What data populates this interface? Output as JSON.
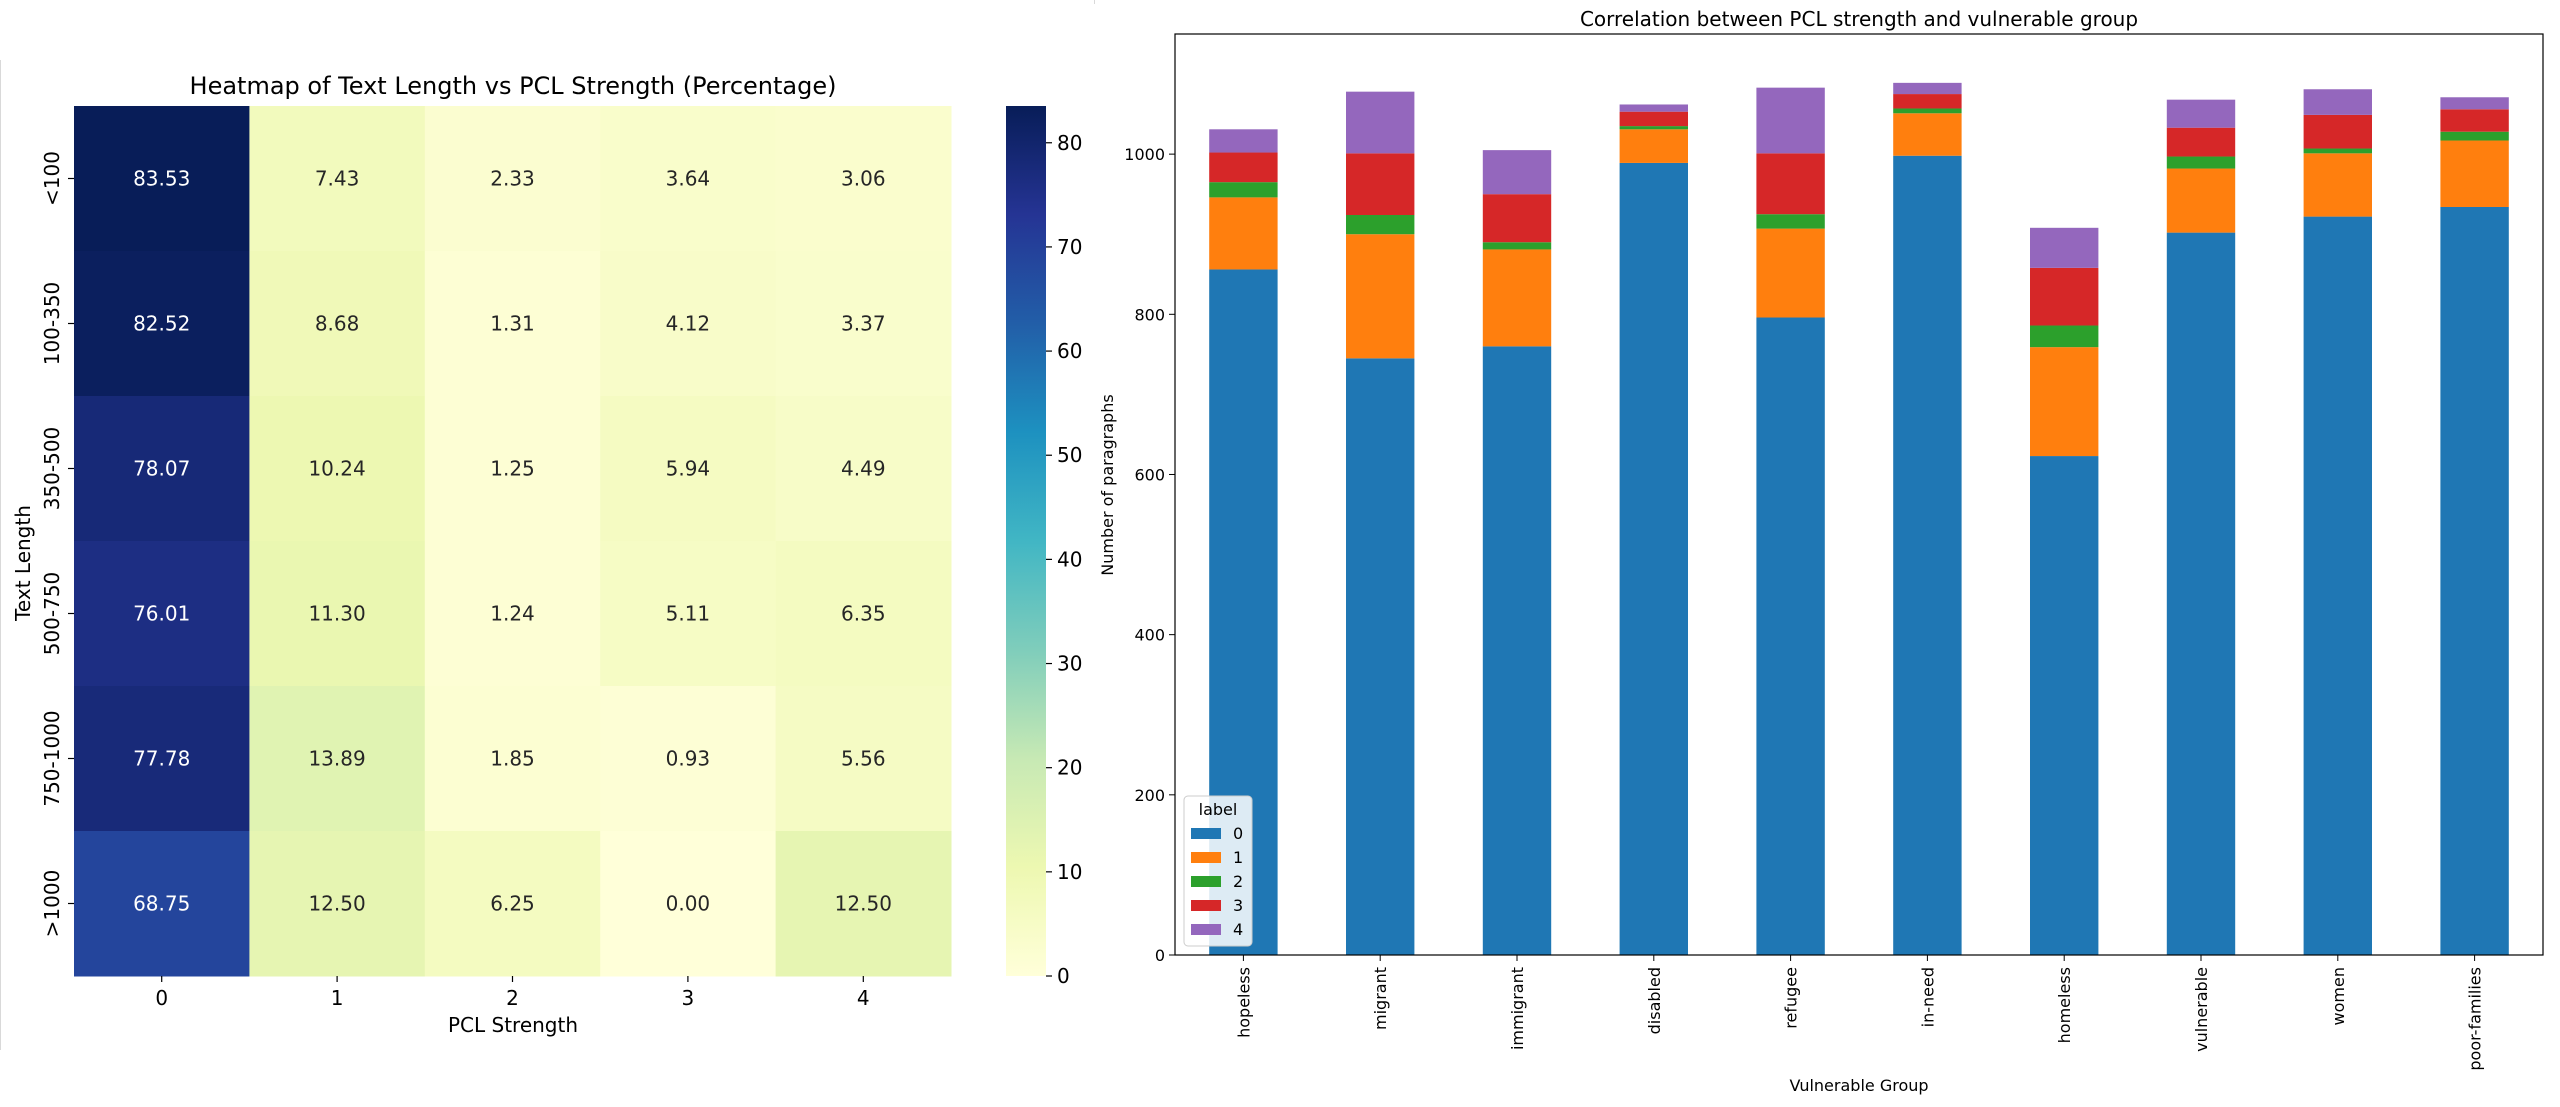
{
  "chart_data": [
    {
      "type": "heatmap",
      "title": "Heatmap of Text Length vs PCL Strength (Percentage)",
      "xlabel": "PCL Strength",
      "ylabel": "Text Length",
      "x_categories": [
        "0",
        "1",
        "2",
        "3",
        "4"
      ],
      "y_categories": [
        "<100",
        "100-350",
        "350-500",
        "500-750",
        "750-1000",
        ">1000"
      ],
      "values": [
        [
          83.53,
          7.43,
          2.33,
          3.64,
          3.06
        ],
        [
          82.52,
          8.68,
          1.31,
          4.12,
          3.37
        ],
        [
          78.07,
          10.24,
          1.25,
          5.94,
          4.49
        ],
        [
          76.01,
          11.3,
          1.24,
          5.11,
          6.35
        ],
        [
          77.78,
          13.89,
          1.85,
          0.93,
          5.56
        ],
        [
          68.75,
          12.5,
          6.25,
          0.0,
          12.5
        ]
      ],
      "value_labels": [
        [
          "83.53",
          "7.43",
          "2.33",
          "3.64",
          "3.06"
        ],
        [
          "82.52",
          "8.68",
          "1.31",
          "4.12",
          "3.37"
        ],
        [
          "78.07",
          "10.24",
          "1.25",
          "5.94",
          "4.49"
        ],
        [
          "76.01",
          "11.30",
          "1.24",
          "5.11",
          "6.35"
        ],
        [
          "77.78",
          "13.89",
          "1.85",
          "0.93",
          "5.56"
        ],
        [
          "68.75",
          "12.50",
          "6.25",
          "0.00",
          "12.50"
        ]
      ],
      "colormap": "YlGnBu",
      "colorbar_range": [
        0,
        83.53
      ],
      "colorbar_ticks": [
        "0",
        "10",
        "20",
        "30",
        "40",
        "50",
        "60",
        "70",
        "80"
      ]
    },
    {
      "type": "bar",
      "stacked": true,
      "title": "Correlation between PCL strength and vulnerable group",
      "xlabel": "Vulnerable Group",
      "ylabel": "Number of paragraphs",
      "categories": [
        "hopeless",
        "migrant",
        "immigrant",
        "disabled",
        "refugee",
        "in-need",
        "homeless",
        "vulnerable",
        "women",
        "poor-families"
      ],
      "ylim": [
        0,
        1150
      ],
      "yticks": [
        "0",
        "200",
        "400",
        "600",
        "800",
        "1000"
      ],
      "legend_title": "label",
      "legend_position": "lower-left",
      "series": [
        {
          "name": "0",
          "color": "#1f77b4",
          "values": [
            856,
            745,
            760,
            989,
            796,
            998,
            623,
            902,
            922,
            934
          ]
        },
        {
          "name": "1",
          "color": "#ff7f0e",
          "values": [
            90,
            155,
            121,
            42,
            111,
            53,
            136,
            80,
            79,
            83
          ]
        },
        {
          "name": "2",
          "color": "#2ca02c",
          "values": [
            19,
            24,
            9,
            4,
            18,
            6,
            27,
            15,
            6,
            11
          ]
        },
        {
          "name": "3",
          "color": "#d62728",
          "values": [
            37,
            77,
            60,
            18,
            76,
            18,
            72,
            36,
            42,
            28
          ]
        },
        {
          "name": "4",
          "color": "#9467bd",
          "values": [
            29,
            77,
            55,
            9,
            82,
            14,
            50,
            35,
            32,
            15
          ]
        }
      ]
    }
  ]
}
